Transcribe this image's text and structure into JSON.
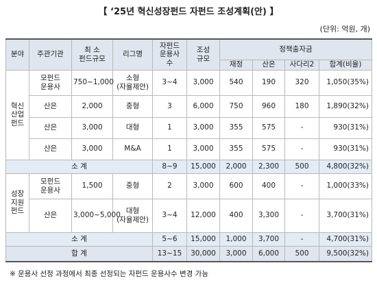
{
  "title": "【 ‘25년 혁신성장펀드 자펀드 조성계획(안) 】",
  "unit": "(단위: 억원, 개)",
  "table": {
    "header": [
      "분야",
      "주관기관",
      "최 소\n펀드규모",
      "리그명",
      "자펀드\n운용사\n수",
      "조성\n규모",
      "정책출자금"
    ],
    "subheader": [
      "재정",
      "산은",
      "사다리2",
      "합계(비율)"
    ],
    "groups": [
      {
        "name": "혁신\n산업\n펀드",
        "rows": [
          [
            "모펀드\n운용사",
            "750~1,000",
            "소형\n(자율제안)",
            "3~4",
            "3,000",
            "540",
            "190",
            "320",
            "1,050(35%)"
          ],
          [
            "산은",
            "2,000",
            "중형",
            "3",
            "6,000",
            "750",
            "960",
            "180",
            "1,890(32%)"
          ],
          [
            "산은",
            "3,000",
            "대형",
            "1",
            "3,000",
            "355",
            "575",
            "-",
            "930(31%)"
          ],
          [
            "산은",
            "3,000",
            "M&A",
            "1",
            "3,000",
            "355",
            "575",
            "-",
            "930(31%)"
          ]
        ],
        "subtotal": [
          "소 계",
          "8~9",
          "15,000",
          "2,000",
          "2,300",
          "500",
          "4,800(32%)"
        ]
      },
      {
        "name": "성장\n지원\n펀드",
        "rows": [
          [
            "모펀드\n운용사",
            "1,500",
            "중형",
            "2",
            "3,000",
            "600",
            "400",
            "-",
            "1,000(33%)"
          ],
          [
            "산은",
            "3,000~5,000",
            "대형\n(자율제안)",
            "3~4",
            "12,000",
            "400",
            "3,300",
            "-",
            "3,700(31%)"
          ]
        ],
        "subtotal": [
          "소 계",
          "5~6",
          "15,000",
          "1,000",
          "3,700",
          "-",
          "4,700(31%)"
        ]
      }
    ],
    "total": [
      "합 계",
      "13~15",
      "30,000",
      "3,000",
      "6,000",
      "500",
      "9,500(32%)"
    ]
  },
  "footnote": "※ 운용사 선정 과정에서 최종 선정되는 자펀드 운용사수 변경 가능"
}
